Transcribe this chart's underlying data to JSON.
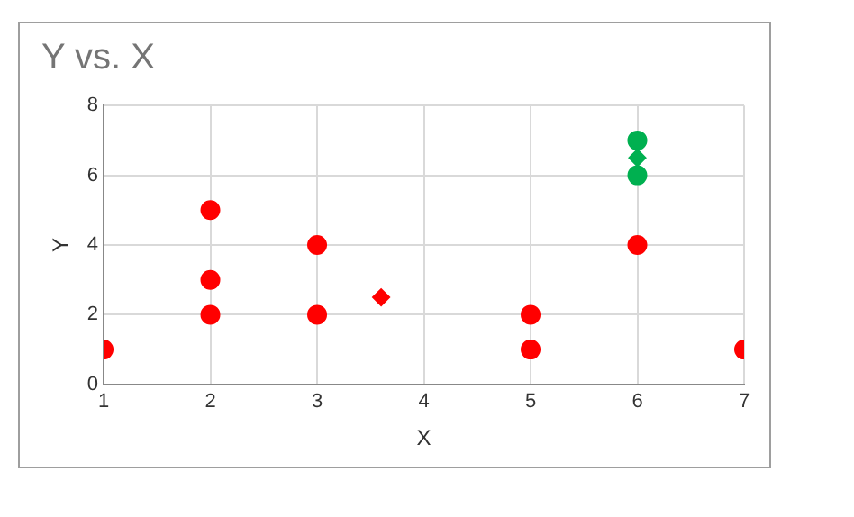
{
  "chart_data": {
    "type": "scatter",
    "title": "Y vs. X",
    "xlabel": "X",
    "ylabel": "Y",
    "xlim": [
      1,
      7
    ],
    "xticks": [
      1,
      2,
      3,
      4,
      5,
      6,
      7
    ],
    "ylim": [
      0,
      8
    ],
    "yticks": [
      0,
      2,
      4,
      6,
      8
    ],
    "grid": true,
    "series": [
      {
        "color": "#ff0000",
        "marker": "circle",
        "x": [
          1,
          2,
          2,
          2,
          3,
          3,
          5,
          5,
          6,
          7
        ],
        "values": [
          1,
          2,
          3,
          5,
          2,
          4,
          1,
          2,
          4,
          1
        ]
      },
      {
        "color": "#ff0000",
        "marker": "diamond",
        "x": [
          3.6
        ],
        "values": [
          2.5
        ]
      },
      {
        "color": "#00b050",
        "marker": "circle",
        "x": [
          6,
          6
        ],
        "values": [
          6,
          7
        ]
      },
      {
        "color": "#00b050",
        "marker": "diamond",
        "x": [
          6
        ],
        "values": [
          6.5
        ]
      }
    ]
  }
}
